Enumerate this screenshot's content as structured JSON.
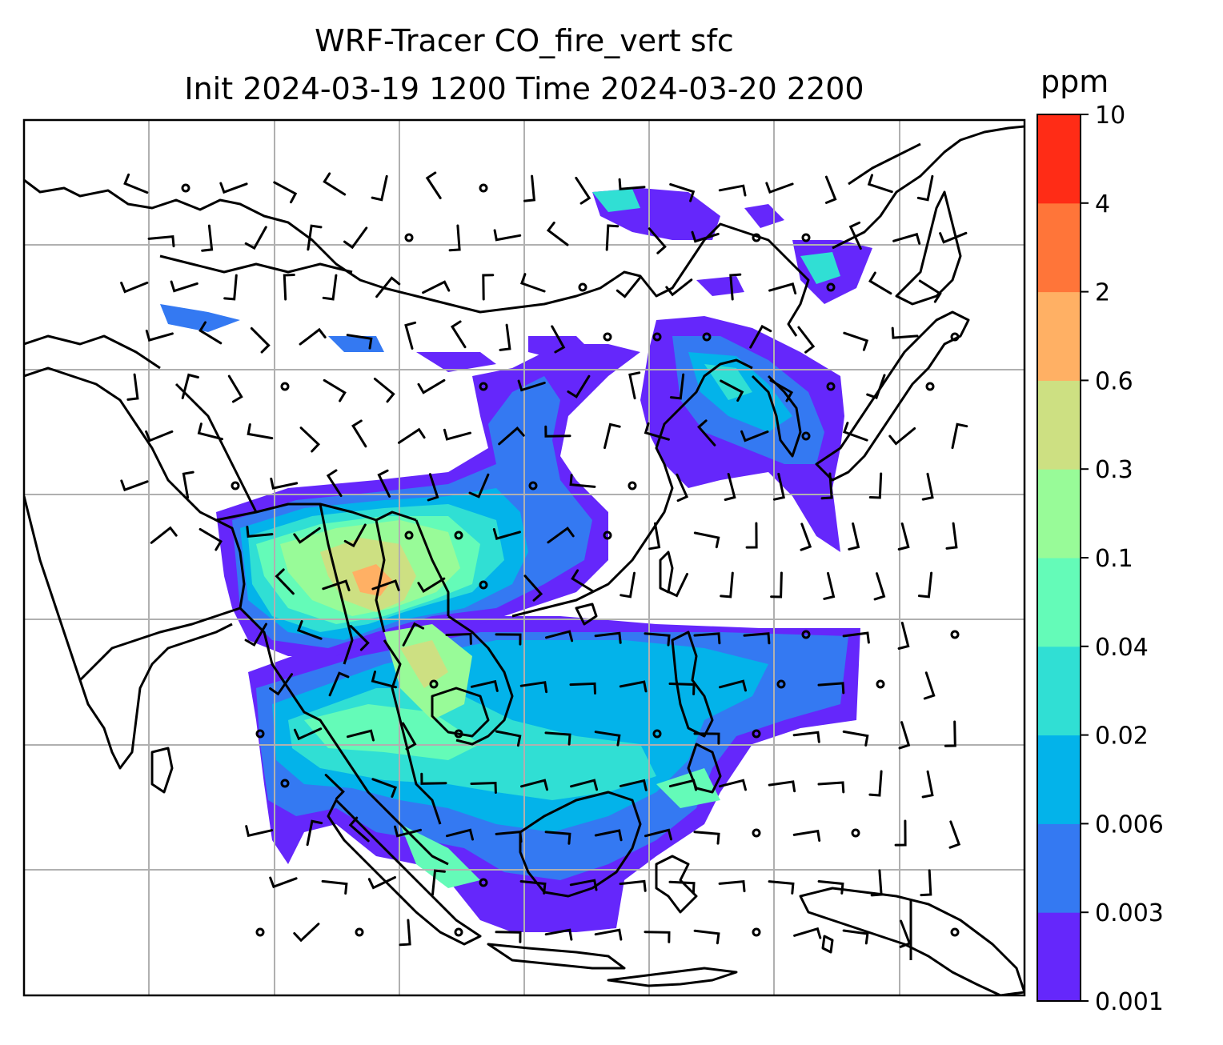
{
  "chart_data": {
    "type": "heatmap",
    "title": "WRF-Tracer CO_fire_vert sfc",
    "subtitle": "Init 2024-03-19 1200 Time 2024-03-20 2200",
    "colorbar": {
      "unit": "ppm",
      "levels": [
        "0.001",
        "0.003",
        "0.006",
        "0.02",
        "0.04",
        "0.1",
        "0.3",
        "0.6",
        "2",
        "4",
        "10"
      ],
      "colors": [
        "#6527fb",
        "#3479f2",
        "#03b3ea",
        "#30dfd4",
        "#64fbb8",
        "#98fb98",
        "#cde082",
        "#ffb064",
        "#ff7539",
        "#ff2c16"
      ]
    },
    "grid": true,
    "overlays": [
      "coastlines",
      "country-borders",
      "wind-barbs"
    ]
  }
}
